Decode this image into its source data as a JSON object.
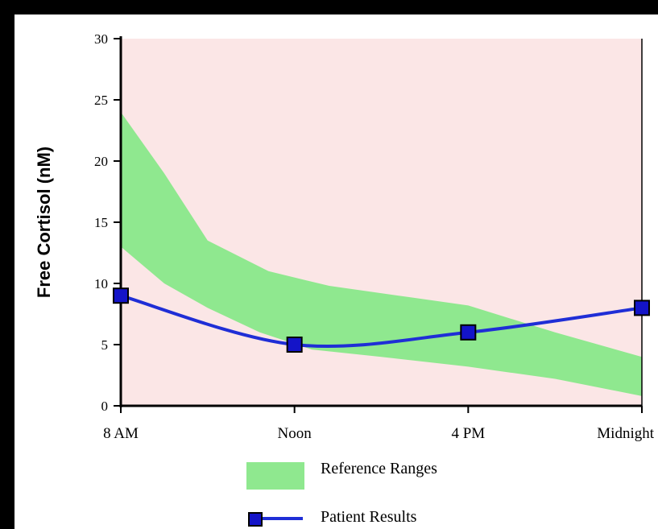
{
  "chart_data": {
    "type": "line",
    "title": "",
    "xlabel": "",
    "ylabel": "Free Cortisol (nM)",
    "categories": [
      "8 AM",
      "Noon",
      "4 PM",
      "Midnight"
    ],
    "ylim": [
      0,
      30
    ],
    "yticks": [
      0,
      5,
      10,
      15,
      20,
      25,
      30
    ],
    "grid": false,
    "legend_position": "bottom",
    "background_color": "#fbe6e6",
    "reference_band": {
      "name": "Reference Ranges",
      "color": "#8fe88f",
      "upper": [
        [
          0,
          24
        ],
        [
          0.25,
          19
        ],
        [
          0.5,
          13.5
        ],
        [
          0.85,
          11
        ],
        [
          1.2,
          9.8
        ],
        [
          1.6,
          9
        ],
        [
          2,
          8.2
        ],
        [
          2.5,
          6
        ],
        [
          3,
          4
        ]
      ],
      "lower": [
        [
          0,
          13
        ],
        [
          0.25,
          10
        ],
        [
          0.5,
          8
        ],
        [
          0.8,
          6
        ],
        [
          1.1,
          4.6
        ],
        [
          1.5,
          4
        ],
        [
          2,
          3.2
        ],
        [
          2.5,
          2.2
        ],
        [
          3,
          0.8
        ]
      ]
    },
    "series": [
      {
        "name": "Patient Results",
        "color": "#1f2ed6",
        "marker_color": "#1414c8",
        "values": [
          9,
          5,
          6,
          8
        ]
      }
    ]
  }
}
